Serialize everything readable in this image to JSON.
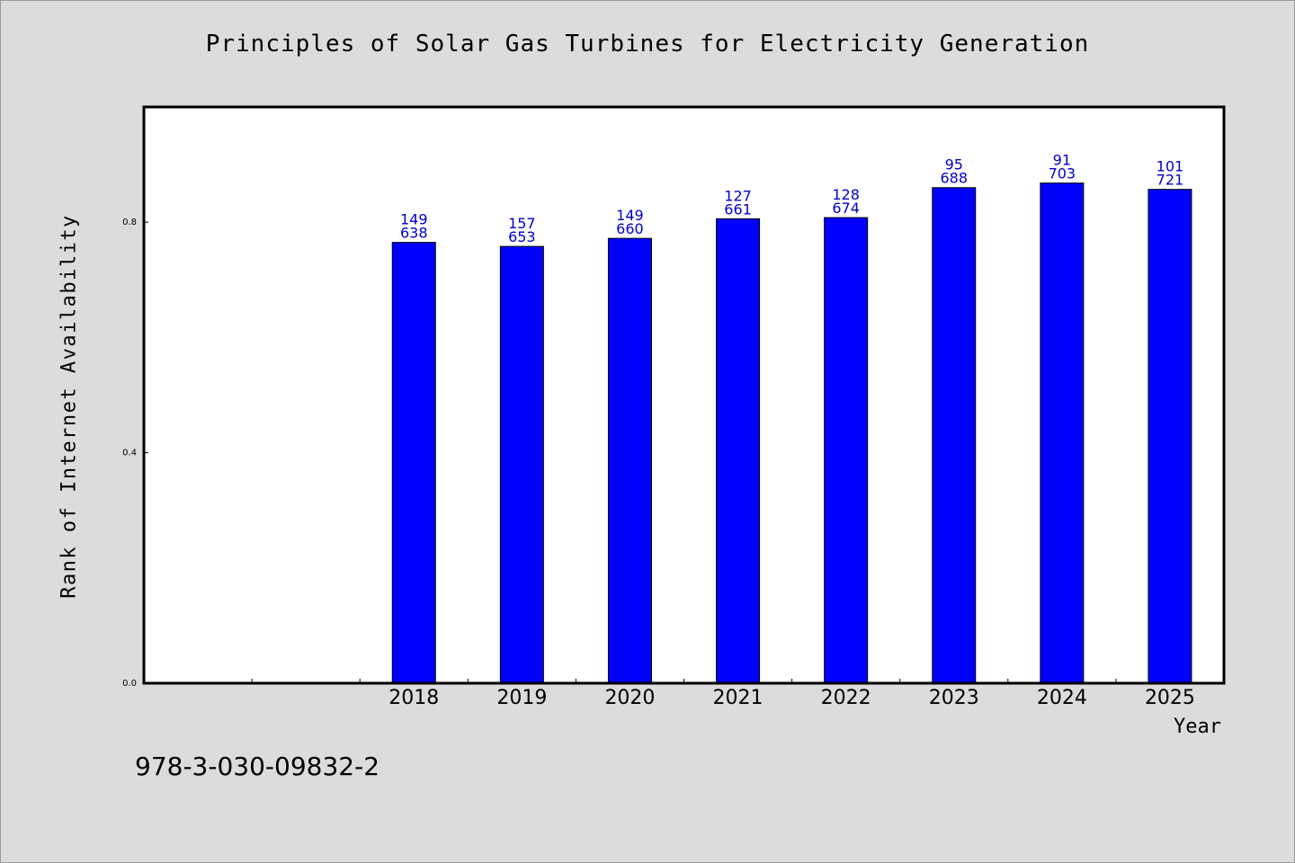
{
  "chart_data": {
    "type": "bar",
    "title": "Principles of Solar Gas Turbines for Electricity Generation",
    "xlabel": "Year",
    "ylabel": "Rank of Internet Availability",
    "categories": [
      "",
      "",
      "2018",
      "2019",
      "2020",
      "2021",
      "2022",
      "2023",
      "2024",
      "2025"
    ],
    "values": [
      null,
      null,
      0.765,
      0.758,
      0.772,
      0.806,
      0.808,
      0.86,
      0.868,
      0.857
    ],
    "labels_top": [
      "",
      "",
      "149",
      "157",
      "149",
      "127",
      "128",
      "95",
      "91",
      "101"
    ],
    "labels_bottom": [
      "",
      "",
      "638",
      "653",
      "660",
      "661",
      "674",
      "688",
      "703",
      "721"
    ],
    "yticks": [
      "0.0",
      "0.4",
      "0.8"
    ],
    "ylim": [
      0,
      1.0
    ],
    "bar_color": "#0000ff",
    "grid": false
  },
  "footer": {
    "code": "978-3-030-09832-2"
  }
}
